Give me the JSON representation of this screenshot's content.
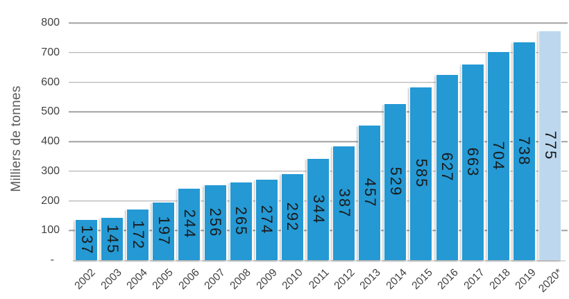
{
  "chart_data": {
    "type": "bar",
    "title": "",
    "xlabel": "",
    "ylabel": "Milliers de tonnes",
    "categories": [
      "2002",
      "2003",
      "2004",
      "2005",
      "2006",
      "2007",
      "2008",
      "2009",
      "2010",
      "2011",
      "2012",
      "2013",
      "2014",
      "2015",
      "2016",
      "2017",
      "2018",
      "2019",
      "2020*"
    ],
    "values": [
      137,
      145,
      172,
      197,
      244,
      256,
      265,
      274,
      292,
      344,
      387,
      457,
      529,
      585,
      627,
      663,
      704,
      738,
      775
    ],
    "ylim": [
      0,
      800
    ],
    "y_ticks": [
      {
        "value": 800,
        "label": "800"
      },
      {
        "value": 700,
        "label": "700"
      },
      {
        "value": 600,
        "label": "600"
      },
      {
        "value": 500,
        "label": "500"
      },
      {
        "value": 400,
        "label": "400"
      },
      {
        "value": 300,
        "label": "300"
      },
      {
        "value": 200,
        "label": "200"
      },
      {
        "value": 100,
        "label": "100"
      },
      {
        "value": 0,
        "label": "-"
      }
    ],
    "grid": "horizontal",
    "legend": "none",
    "value_labels": "inside-rotated-90deg",
    "x_labels_rotation": -45,
    "colors": {
      "bar": "#2499D4",
      "last_bar": "#BDD8EE",
      "gridline": "#A2A2A2",
      "axis_text": "#404040",
      "value_label_text": "#1A1A1A",
      "y_title_text": "#595959",
      "background": "#FFFFFF"
    }
  }
}
